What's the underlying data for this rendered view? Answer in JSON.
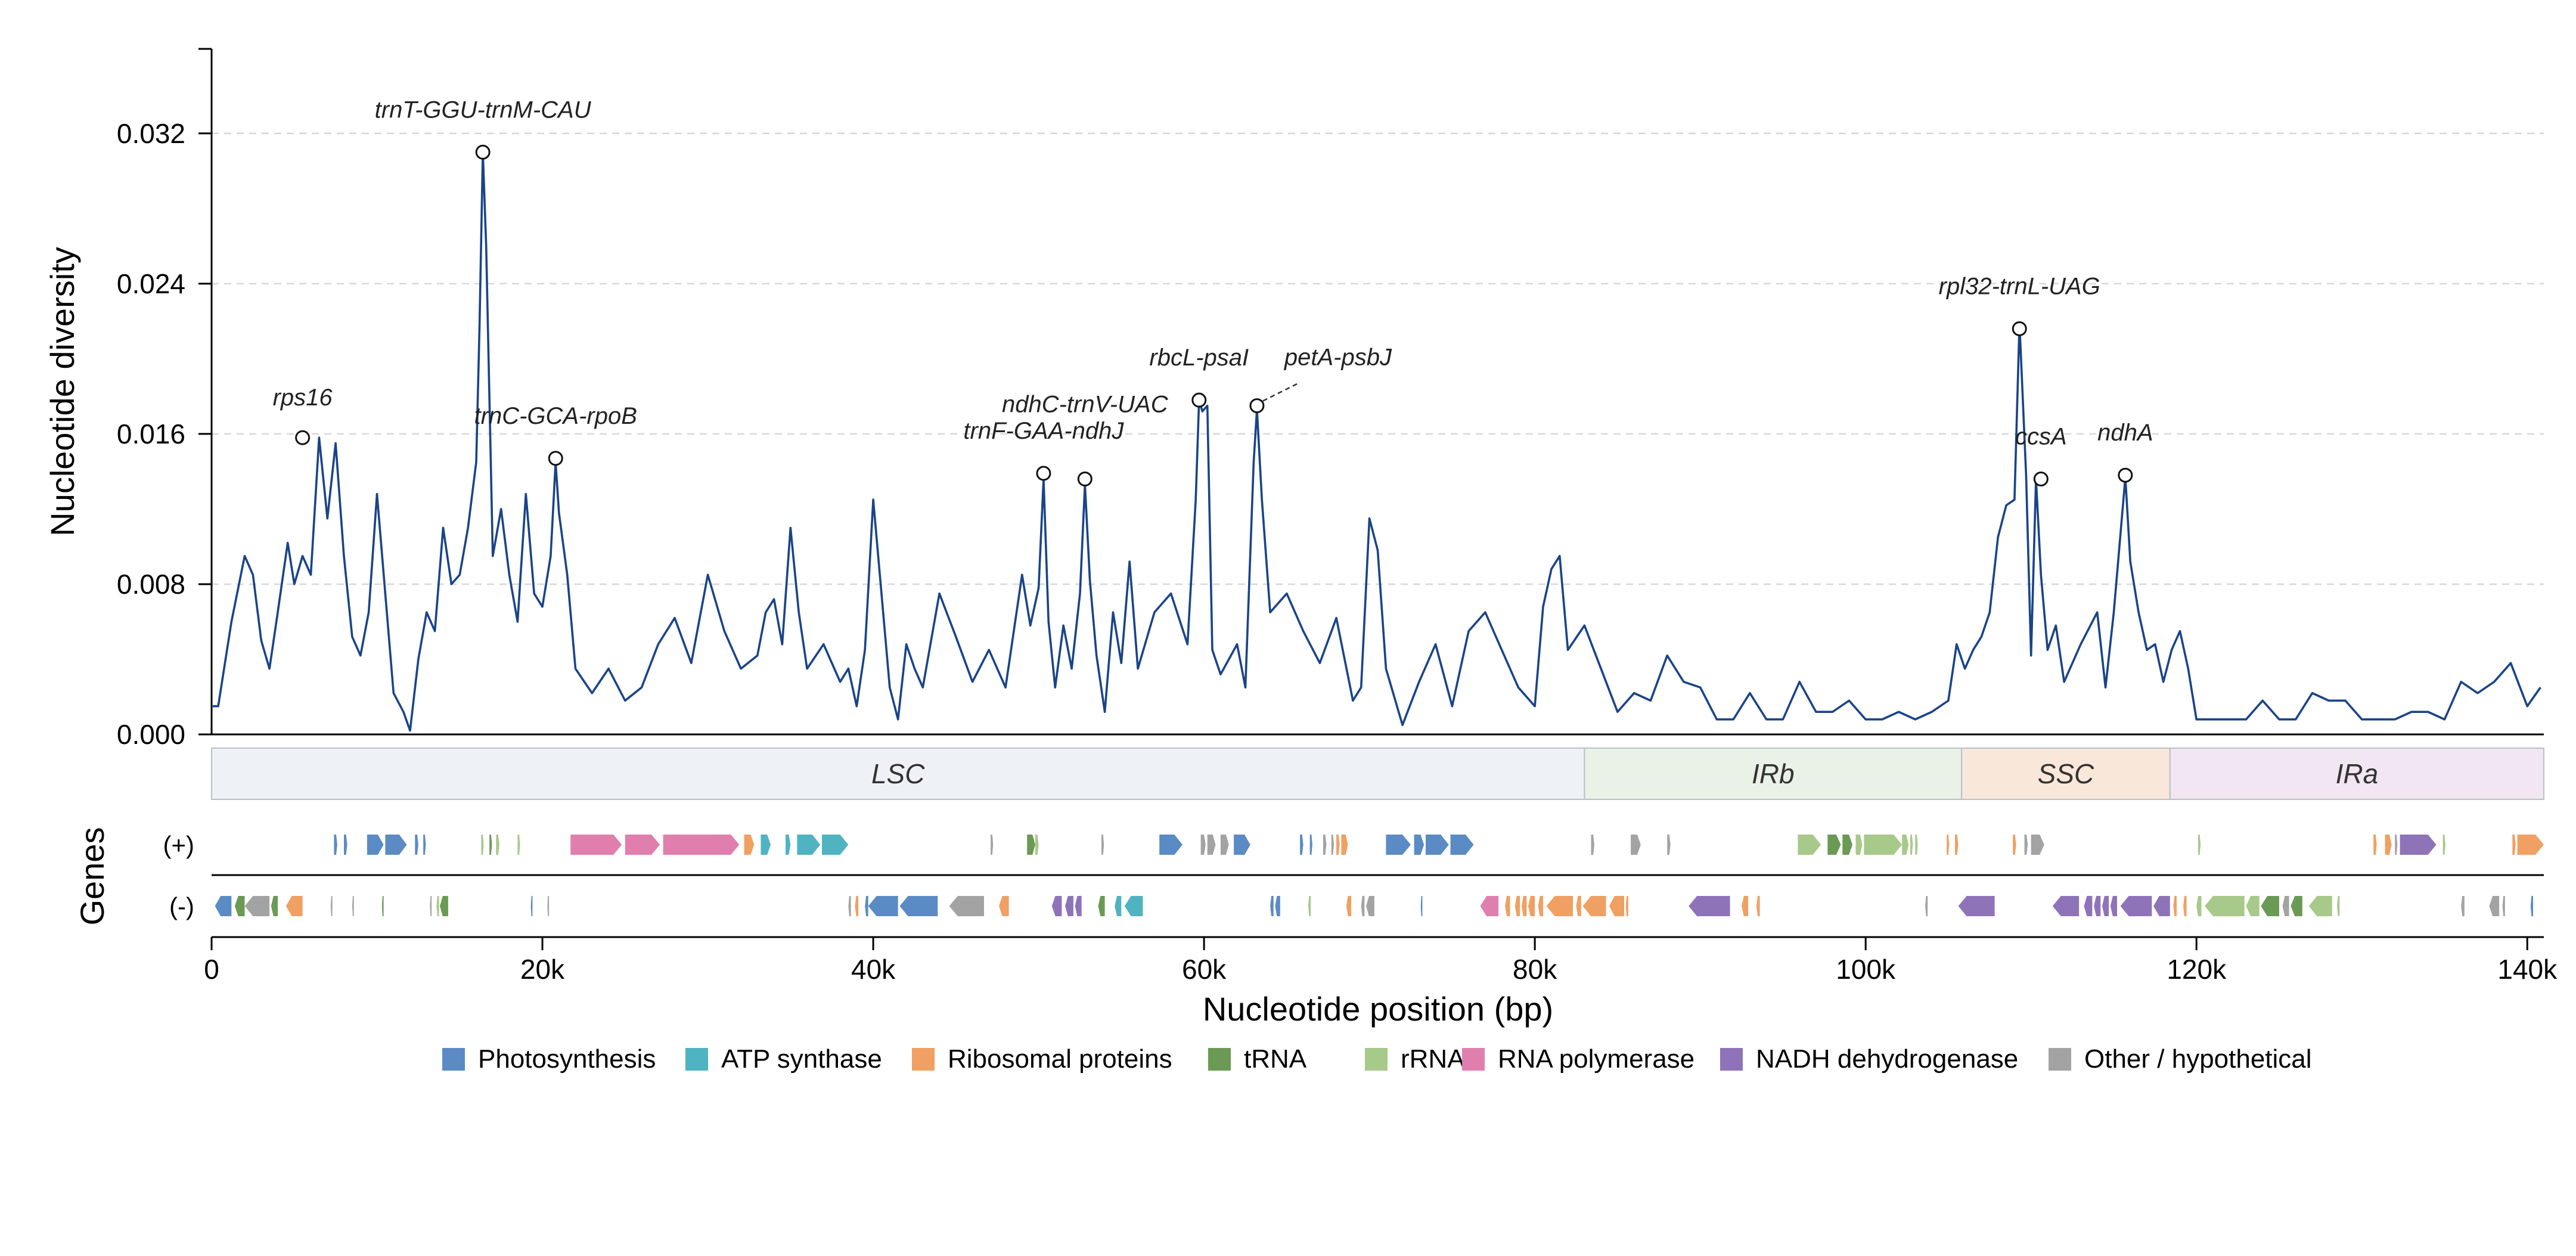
{
  "chart_data": {
    "type": "line",
    "xlabel": "Nucleotide position (bp)",
    "ylabel": "Nucleotide diversity",
    "xlim": [
      0,
      141000
    ],
    "ylim": [
      0,
      0.0365
    ],
    "x_ticks": [
      0,
      20000,
      40000,
      60000,
      80000,
      100000,
      120000,
      140000
    ],
    "x_tick_labels": [
      "0",
      "20k",
      "40k",
      "60k",
      "80k",
      "100k",
      "120k",
      "140k"
    ],
    "y_ticks": [
      0,
      0.008,
      0.016,
      0.024,
      0.032
    ],
    "y_tick_labels": [
      "0.000",
      "0.008",
      "0.016",
      "0.024",
      "0.032"
    ],
    "grid": "y-dashed",
    "line_color": "#1a4488",
    "series": [
      {
        "x": [
          0,
          400,
          1200,
          2000,
          2500,
          3000,
          3500,
          4000,
          4600,
          5000,
          5500,
          6000,
          6500,
          7000,
          7500,
          8000,
          8500,
          9000,
          9500,
          10000,
          11000,
          11600,
          12000,
          12500,
          13000,
          13500,
          14000,
          14500,
          15000,
          15500,
          16000,
          16200,
          16400,
          16600,
          17000,
          17500,
          18000,
          18500,
          19000,
          19500,
          20000,
          20500,
          20800,
          21000,
          21500,
          22000,
          23000,
          24000,
          25000,
          26000,
          27000,
          28000,
          29000,
          30000,
          31000,
          32000,
          33000,
          33500,
          34000,
          34500,
          35000,
          35500,
          36000,
          37000,
          38000,
          38500,
          39000,
          39500,
          40000,
          41000,
          41500,
          42000,
          42500,
          43000,
          44000,
          45000,
          46000,
          47000,
          48000,
          49000,
          49500,
          50000,
          50300,
          50600,
          51000,
          51500,
          52000,
          52500,
          52800,
          53100,
          53500,
          54000,
          54500,
          55000,
          55500,
          56000,
          57000,
          58000,
          59000,
          59500,
          59700,
          59900,
          60200,
          60500,
          61000,
          62000,
          62500,
          63000,
          63200,
          63500,
          64000,
          65000,
          66000,
          67000,
          68000,
          69000,
          69500,
          70000,
          70500,
          71000,
          72000,
          73000,
          74000,
          75000,
          76000,
          77000,
          78000,
          79000,
          80000,
          80500,
          81000,
          81500,
          82000,
          83000,
          84000,
          85000,
          86000,
          87000,
          88000,
          89000,
          90000,
          91000,
          92000,
          93000,
          94000,
          95000,
          96000,
          97000,
          98000,
          99000,
          100000,
          101000,
          102000,
          103000,
          104000,
          105000,
          105500,
          106000,
          106500,
          107000,
          107500,
          108000,
          108500,
          109000,
          109300,
          109700,
          110000,
          110300,
          110600,
          111000,
          111500,
          112000,
          113000,
          114000,
          114500,
          115000,
          115700,
          116000,
          116500,
          117000,
          117500,
          118000,
          118500,
          119000,
          119500,
          120000,
          121000,
          122000,
          123000,
          124000,
          125000,
          126000,
          127000,
          128000,
          129000,
          130000,
          131000,
          132000,
          133000,
          134000,
          135000,
          136000,
          137000,
          138000,
          139000,
          140000,
          140800
        ],
        "y": [
          0.0015,
          0.0015,
          0.006,
          0.0095,
          0.0085,
          0.005,
          0.0035,
          0.0065,
          0.0102,
          0.008,
          0.0095,
          0.0085,
          0.0158,
          0.0115,
          0.0155,
          0.0095,
          0.0052,
          0.0042,
          0.0065,
          0.0128,
          0.0022,
          0.0012,
          0.0002,
          0.004,
          0.0065,
          0.0055,
          0.011,
          0.008,
          0.0085,
          0.011,
          0.0145,
          0.0218,
          0.031,
          0.026,
          0.0095,
          0.012,
          0.0085,
          0.006,
          0.0128,
          0.0075,
          0.0068,
          0.0095,
          0.0145,
          0.0118,
          0.0085,
          0.0035,
          0.0022,
          0.0035,
          0.0018,
          0.0025,
          0.0048,
          0.0062,
          0.0038,
          0.0085,
          0.0055,
          0.0035,
          0.0042,
          0.0065,
          0.0072,
          0.0048,
          0.011,
          0.0065,
          0.0035,
          0.0048,
          0.0028,
          0.0035,
          0.0015,
          0.0045,
          0.0125,
          0.0025,
          0.0008,
          0.0048,
          0.0035,
          0.0025,
          0.0075,
          0.0052,
          0.0028,
          0.0045,
          0.0025,
          0.0085,
          0.0058,
          0.0078,
          0.0136,
          0.006,
          0.0025,
          0.0058,
          0.0035,
          0.0075,
          0.0133,
          0.0082,
          0.0042,
          0.0012,
          0.0065,
          0.0038,
          0.0092,
          0.0035,
          0.0065,
          0.0075,
          0.0048,
          0.0125,
          0.0178,
          0.0172,
          0.0175,
          0.0045,
          0.0032,
          0.0048,
          0.0025,
          0.0145,
          0.0173,
          0.0125,
          0.0065,
          0.0075,
          0.0055,
          0.0038,
          0.0062,
          0.0018,
          0.0025,
          0.0115,
          0.0098,
          0.0035,
          0.0005,
          0.0028,
          0.0048,
          0.0015,
          0.0055,
          0.0065,
          0.0045,
          0.0025,
          0.0015,
          0.0068,
          0.0088,
          0.0095,
          0.0045,
          0.0058,
          0.0035,
          0.0012,
          0.0022,
          0.0018,
          0.0042,
          0.0028,
          0.0025,
          0.0008,
          0.0008,
          0.0022,
          0.0008,
          0.0008,
          0.0028,
          0.0012,
          0.0012,
          0.0018,
          0.0008,
          0.0008,
          0.0012,
          0.0008,
          0.0012,
          0.0018,
          0.0048,
          0.0035,
          0.0045,
          0.0052,
          0.0065,
          0.0105,
          0.0122,
          0.0125,
          0.0219,
          0.0138,
          0.0042,
          0.0136,
          0.0085,
          0.0045,
          0.0058,
          0.0028,
          0.0048,
          0.0065,
          0.0025,
          0.0065,
          0.0137,
          0.0092,
          0.0065,
          0.0045,
          0.0048,
          0.0028,
          0.0045,
          0.0055,
          0.0035,
          0.0008,
          0.0008,
          0.0008,
          0.0008,
          0.0018,
          0.0008,
          0.0008,
          0.0022,
          0.0018,
          0.0018,
          0.0008,
          0.0008,
          0.0008,
          0.0012,
          0.0012,
          0.0008,
          0.0028,
          0.0022,
          0.0028,
          0.0038,
          0.0015,
          0.0025
        ]
      }
    ],
    "annotations": [
      {
        "label": "rps16",
        "x": 5500,
        "y": 0.0158
      },
      {
        "label": "trnT-GGU-trnM-CAU",
        "x": 16400,
        "y": 0.031
      },
      {
        "label": "trnC-GCA-rpoB",
        "x": 20800,
        "y": 0.0147
      },
      {
        "label": "trnF-GAA-ndhJ",
        "x": 50300,
        "y": 0.0139
      },
      {
        "label": "ndhC-trnV-UAC",
        "x": 52800,
        "y": 0.0136
      },
      {
        "label": "rbcL-psaI",
        "x": 59700,
        "y": 0.0178
      },
      {
        "label": "petA-psbJ",
        "x": 63200,
        "y": 0.0175
      },
      {
        "label": "rpl32-trnL-UAG",
        "x": 109300,
        "y": 0.0216
      },
      {
        "label": "ccsA",
        "x": 110600,
        "y": 0.0136
      },
      {
        "label": "ndhA",
        "x": 115700,
        "y": 0.0138
      }
    ],
    "regions": [
      {
        "label": "LSC",
        "start": 0,
        "end": 83000,
        "color": "#eef2f6"
      },
      {
        "label": "IRb",
        "start": 83000,
        "end": 105800,
        "color": "#eaf2e8"
      },
      {
        "label": "SSC",
        "start": 105800,
        "end": 118400,
        "color": "#f9e8da"
      },
      {
        "label": "IRa",
        "start": 118400,
        "end": 141000,
        "color": "#f1e6f1"
      }
    ],
    "gene_track_label": "Genes",
    "strand_labels": [
      "(+)",
      "(-)"
    ],
    "gene_categories": [
      {
        "name": "Photosynthesis",
        "color": "#5b8bc4"
      },
      {
        "name": "ATP synthase",
        "color": "#4fb3c2"
      },
      {
        "name": "Ribosomal proteins",
        "color": "#f0a062"
      },
      {
        "name": "tRNA",
        "color": "#6a9a54"
      },
      {
        "name": "rRNA",
        "color": "#a7c98a"
      },
      {
        "name": "RNA polymerase",
        "color": "#e07fae"
      },
      {
        "name": "NADH dehydrogenase",
        "color": "#8f73b8"
      },
      {
        "name": "Other / hypothetical",
        "color": "#a3a3a3"
      }
    ],
    "genes_plus": [
      [
        7400,
        7600,
        "Photosynthesis"
      ],
      [
        8000,
        8200,
        "Photosynthesis"
      ],
      [
        9400,
        10400,
        "Photosynthesis"
      ],
      [
        10500,
        11800,
        "Photosynthesis"
      ],
      [
        12300,
        12500,
        "Photosynthesis"
      ],
      [
        12800,
        12950,
        "Photosynthesis"
      ],
      [
        16300,
        16450,
        "rRNA"
      ],
      [
        16800,
        16950,
        "tRNA"
      ],
      [
        17200,
        17400,
        "rRNA"
      ],
      [
        18500,
        18650,
        "rRNA"
      ],
      [
        21700,
        24800,
        "RNA polymerase"
      ],
      [
        25000,
        27100,
        "RNA polymerase"
      ],
      [
        27300,
        31900,
        "RNA polymerase"
      ],
      [
        32200,
        32800,
        "Ribosomal proteins"
      ],
      [
        33200,
        33800,
        "ATP synthase"
      ],
      [
        34700,
        35000,
        "ATP synthase"
      ],
      [
        35400,
        36800,
        "ATP synthase"
      ],
      [
        36900,
        38500,
        "ATP synthase"
      ],
      [
        47100,
        47250,
        "Other / hypothetical"
      ],
      [
        49300,
        49800,
        "tRNA"
      ],
      [
        49800,
        50000,
        "rRNA"
      ],
      [
        53800,
        53950,
        "Other / hypothetical"
      ],
      [
        57300,
        58700,
        "Photosynthesis"
      ],
      [
        59800,
        60100,
        "Other / hypothetical"
      ],
      [
        60200,
        60700,
        "Other / hypothetical"
      ],
      [
        61000,
        61500,
        "Other / hypothetical"
      ],
      [
        61800,
        62800,
        "Photosynthesis"
      ],
      [
        65800,
        66000,
        "Photosynthesis"
      ],
      [
        66400,
        66550,
        "Photosynthesis"
      ],
      [
        67200,
        67400,
        "Other / hypothetical"
      ],
      [
        67700,
        67850,
        "Other / hypothetical"
      ],
      [
        68000,
        68200,
        "Ribosomal proteins"
      ],
      [
        68300,
        68700,
        "Ribosomal proteins"
      ],
      [
        71000,
        72500,
        "Photosynthesis"
      ],
      [
        72700,
        73300,
        "Photosynthesis"
      ],
      [
        73400,
        74800,
        "Photosynthesis"
      ],
      [
        74900,
        76300,
        "Photosynthesis"
      ],
      [
        83400,
        83600,
        "Other / hypothetical"
      ],
      [
        85800,
        86400,
        "Other / hypothetical"
      ],
      [
        88000,
        88200,
        "Other / hypothetical"
      ],
      [
        95900,
        97300,
        "rRNA"
      ],
      [
        97700,
        98500,
        "tRNA"
      ],
      [
        98600,
        99200,
        "tRNA"
      ],
      [
        99400,
        99800,
        "rRNA"
      ],
      [
        99900,
        102200,
        "rRNA"
      ],
      [
        102200,
        102600,
        "rRNA"
      ],
      [
        102700,
        102850,
        "rRNA"
      ],
      [
        103000,
        103150,
        "rRNA"
      ],
      [
        104900,
        105050,
        "Ribosomal proteins"
      ],
      [
        105400,
        105600,
        "Ribosomal proteins"
      ],
      [
        108900,
        109100,
        "Ribosomal proteins"
      ],
      [
        109600,
        109800,
        "Other / hypothetical"
      ],
      [
        110000,
        110800,
        "Other / hypothetical"
      ],
      [
        120100,
        120250,
        "rRNA"
      ],
      [
        130700,
        130900,
        "Ribosomal proteins"
      ],
      [
        131400,
        131800,
        "Ribosomal proteins"
      ],
      [
        132000,
        132150,
        "Other / hypothetical"
      ],
      [
        132300,
        134500,
        "NADH dehydrogenase"
      ],
      [
        134900,
        135050,
        "rRNA"
      ],
      [
        139100,
        139300,
        "Ribosomal proteins"
      ],
      [
        139400,
        141000,
        "Ribosomal proteins"
      ]
    ],
    "genes_minus": [
      [
        200,
        1200,
        "Photosynthesis"
      ],
      [
        1400,
        2000,
        "tRNA"
      ],
      [
        2000,
        3500,
        "Other / hypothetical"
      ],
      [
        3600,
        4000,
        "tRNA"
      ],
      [
        4500,
        5500,
        "Ribosomal proteins"
      ],
      [
        7200,
        7300,
        "Other / hypothetical"
      ],
      [
        8500,
        8600,
        "Other / hypothetical"
      ],
      [
        10300,
        10400,
        "tRNA"
      ],
      [
        13200,
        13300,
        "Other / hypothetical"
      ],
      [
        13600,
        13750,
        "rRNA"
      ],
      [
        13800,
        14300,
        "tRNA"
      ],
      [
        19300,
        19400,
        "Photosynthesis"
      ],
      [
        20300,
        20400,
        "Other / hypothetical"
      ],
      [
        38500,
        38650,
        "Other / hypothetical"
      ],
      [
        38900,
        39100,
        "Ribosomal proteins"
      ],
      [
        39500,
        39700,
        "Photosynthesis"
      ],
      [
        39700,
        41500,
        "Photosynthesis"
      ],
      [
        41600,
        43900,
        "Photosynthesis"
      ],
      [
        44600,
        46700,
        "Other / hypothetical"
      ],
      [
        47600,
        48200,
        "Ribosomal proteins"
      ],
      [
        50800,
        51400,
        "NADH dehydrogenase"
      ],
      [
        51600,
        52100,
        "NADH dehydrogenase"
      ],
      [
        52200,
        52600,
        "NADH dehydrogenase"
      ],
      [
        53600,
        54000,
        "tRNA"
      ],
      [
        54600,
        55000,
        "ATP synthase"
      ],
      [
        55200,
        56300,
        "ATP synthase"
      ],
      [
        64000,
        64200,
        "Photosynthesis"
      ],
      [
        64300,
        64600,
        "Photosynthesis"
      ],
      [
        66300,
        66450,
        "rRNA"
      ],
      [
        68600,
        68900,
        "Ribosomal proteins"
      ],
      [
        69500,
        69700,
        "Other / hypothetical"
      ],
      [
        69800,
        70300,
        "Other / hypothetical"
      ],
      [
        73100,
        73200,
        "Photosynthesis"
      ],
      [
        76700,
        77800,
        "RNA polymerase"
      ],
      [
        78200,
        78500,
        "Ribosomal proteins"
      ],
      [
        78800,
        79100,
        "Ribosomal proteins"
      ],
      [
        79200,
        79500,
        "Ribosomal proteins"
      ],
      [
        79600,
        80000,
        "Ribosomal proteins"
      ],
      [
        80200,
        80500,
        "Ribosomal proteins"
      ],
      [
        80700,
        82300,
        "Ribosomal proteins"
      ],
      [
        82500,
        82800,
        "Ribosomal proteins"
      ],
      [
        82900,
        84300,
        "Ribosomal proteins"
      ],
      [
        84500,
        85400,
        "Ribosomal proteins"
      ],
      [
        85500,
        85650,
        "Ribosomal proteins"
      ],
      [
        89300,
        91800,
        "NADH dehydrogenase"
      ],
      [
        92500,
        92900,
        "Ribosomal proteins"
      ],
      [
        93400,
        93600,
        "Ribosomal proteins"
      ],
      [
        103600,
        103750,
        "Other / hypothetical"
      ],
      [
        105600,
        107800,
        "NADH dehydrogenase"
      ],
      [
        111300,
        112900,
        "NADH dehydrogenase"
      ],
      [
        113200,
        113700,
        "NADH dehydrogenase"
      ],
      [
        113800,
        114200,
        "NADH dehydrogenase"
      ],
      [
        114300,
        114700,
        "NADH dehydrogenase"
      ],
      [
        114800,
        115200,
        "NADH dehydrogenase"
      ],
      [
        115400,
        117300,
        "NADH dehydrogenase"
      ],
      [
        117400,
        118400,
        "NADH dehydrogenase"
      ],
      [
        118600,
        118800,
        "Ribosomal proteins"
      ],
      [
        119200,
        119400,
        "Ribosomal proteins"
      ],
      [
        120000,
        120300,
        "rRNA"
      ],
      [
        120500,
        122900,
        "rRNA"
      ],
      [
        123000,
        123800,
        "rRNA"
      ],
      [
        123900,
        125000,
        "tRNA"
      ],
      [
        125200,
        125600,
        "Other / hypothetical"
      ],
      [
        125700,
        126400,
        "tRNA"
      ],
      [
        126800,
        128200,
        "rRNA"
      ],
      [
        128500,
        128650,
        "rRNA"
      ],
      [
        136000,
        136200,
        "Other / hypothetical"
      ],
      [
        137700,
        138300,
        "Other / hypothetical"
      ],
      [
        138500,
        138650,
        "Other / hypothetical"
      ],
      [
        140200,
        140350,
        "Photosynthesis"
      ]
    ]
  }
}
